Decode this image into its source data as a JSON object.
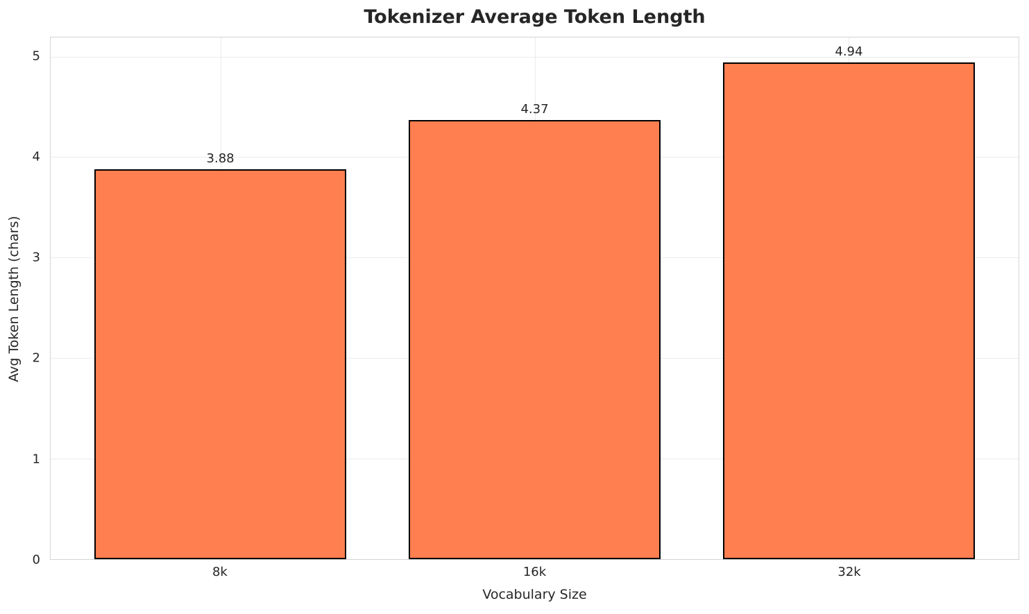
{
  "chart_data": {
    "type": "bar",
    "title": "Tokenizer Average Token Length",
    "xlabel": "Vocabulary Size",
    "ylabel": "Avg Token Length (chars)",
    "categories": [
      "8k",
      "16k",
      "32k"
    ],
    "values": [
      3.88,
      4.37,
      4.94
    ],
    "value_labels": [
      "3.88",
      "4.37",
      "4.94"
    ],
    "ylim": [
      0,
      5.19
    ],
    "yticks": [
      0,
      1,
      2,
      3,
      4,
      5
    ],
    "ytick_labels": [
      "0",
      "1",
      "2",
      "3",
      "4",
      "5"
    ],
    "grid": "horizontal and vertical light-gray gridlines on white",
    "legend_position": "none",
    "bar_color": "#ff7f50",
    "bar_edge_color": "#000000",
    "text_color": "#262626",
    "grid_color": "#ebebeb",
    "spine_color": "#d4d4d4",
    "bar_width_fraction": 0.8,
    "x_margin": 0.54
  }
}
